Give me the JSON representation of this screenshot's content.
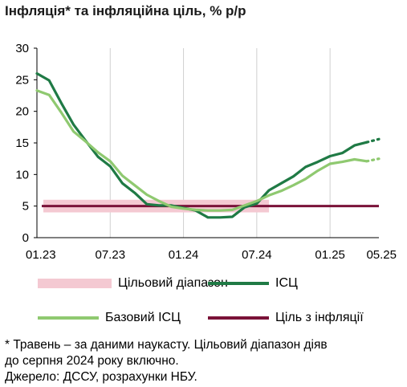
{
  "title": "Інфляція* та інфляційна ціль, % р/р",
  "chart_data": {
    "type": "line",
    "x_ticks": [
      "01.23",
      "07.23",
      "01.24",
      "07.24",
      "01.25",
      "05.25"
    ],
    "ylim": [
      0,
      30
    ],
    "y_ticks": [
      0,
      5,
      10,
      15,
      20,
      25,
      30
    ],
    "grid": "vertical",
    "x_months": [
      "01.23",
      "02.23",
      "03.23",
      "04.23",
      "05.23",
      "06.23",
      "07.23",
      "08.23",
      "09.23",
      "10.23",
      "11.23",
      "12.23",
      "01.24",
      "02.24",
      "03.24",
      "04.24",
      "05.24",
      "06.24",
      "07.24",
      "08.24",
      "09.24",
      "10.24",
      "11.24",
      "12.24",
      "01.25",
      "02.25",
      "03.25",
      "04.25",
      "05.25"
    ],
    "target_band": {
      "name": "Цільовий діапазон",
      "low": 4,
      "high": 6,
      "until": "08.24",
      "color": "#f4c9d2"
    },
    "target": {
      "name": "Ціль з інфляції",
      "value": 5,
      "color": "#7a1238"
    },
    "series": [
      {
        "name": "ІСЦ",
        "color": "#1f7a45",
        "values": [
          26.0,
          24.9,
          21.3,
          17.9,
          15.3,
          12.8,
          11.3,
          8.6,
          7.1,
          5.3,
          5.1,
          5.1,
          4.7,
          4.3,
          3.2,
          3.2,
          3.3,
          4.8,
          5.4,
          7.5,
          8.6,
          9.7,
          11.2,
          12.0,
          12.9,
          13.4,
          14.6,
          15.1,
          15.6
        ],
        "forecast_from": 28
      },
      {
        "name": "Базовий ІСЦ",
        "color": "#8fc970",
        "values": [
          23.3,
          22.6,
          19.8,
          16.8,
          15.2,
          13.5,
          12.1,
          9.8,
          8.3,
          6.8,
          5.8,
          4.9,
          4.6,
          4.4,
          4.3,
          4.3,
          4.4,
          5.1,
          5.8,
          6.7,
          7.4,
          8.3,
          9.3,
          10.6,
          11.7,
          12.0,
          12.4,
          12.1,
          12.5
        ],
        "forecast_from": 28
      }
    ]
  },
  "legend": {
    "band": "Цільовий діапазон",
    "cpi": "ІСЦ",
    "core": "Базовий ІСЦ",
    "target": "Ціль з інфляції"
  },
  "note": {
    "line1": "* Травень – за даними наукасту. Цільовий діапазон діяв",
    "line2": "до серпня 2024 року включно.",
    "line3": "Джерело: ДССУ, розрахунки НБУ."
  }
}
